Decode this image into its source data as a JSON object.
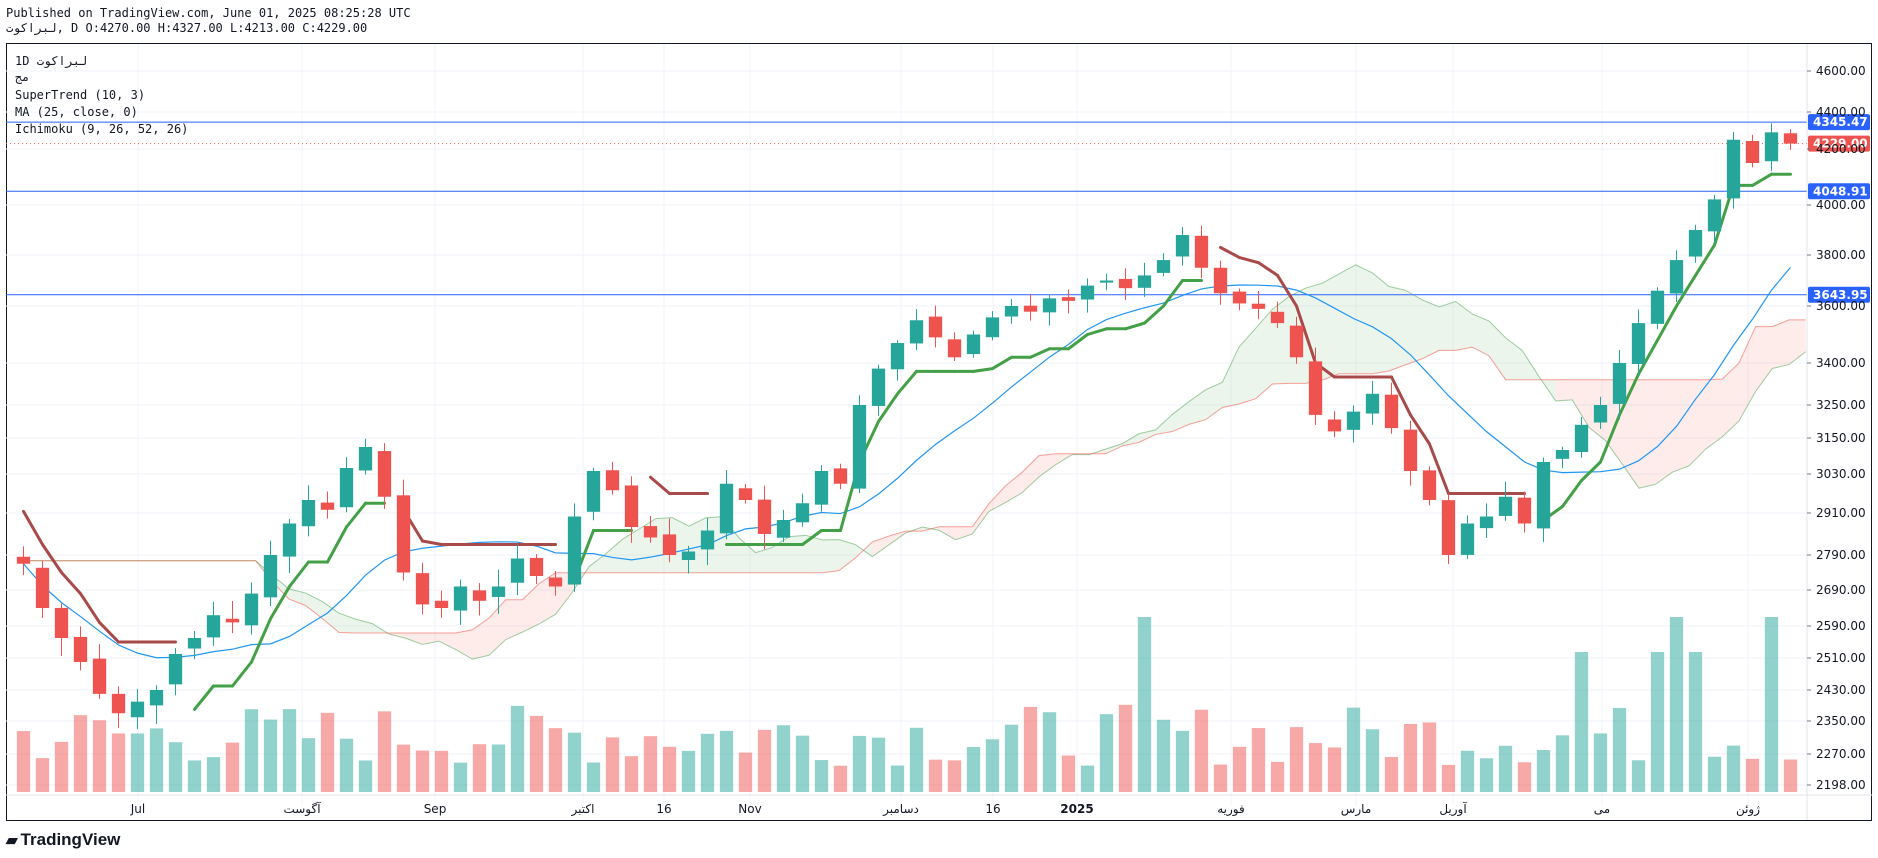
{
  "header": {
    "published": "Published on TradingView.com, June 01, 2025 08:25:28 UTC",
    "symbol": "لبراكوت, D",
    "ohlc": "O:4270.00 H:4327.00 L:4213.00 C:4229.00"
  },
  "legend": {
    "symbol_interval": "1D لبراكوت",
    "exchange": "مج",
    "indicators": [
      "SuperTrend (10, 3)",
      "MA (25, close, 0)",
      "Ichimoku (9, 26, 52, 26)"
    ]
  },
  "brand": {
    "text": "TradingView"
  },
  "colors": {
    "up": "#26a69a",
    "down": "#ef5350",
    "hline": "#2962ff",
    "ma": "#2196f3",
    "st_up": "#43a047",
    "st_down": "#a84a4a"
  },
  "chart_data": {
    "type": "line",
    "title": "",
    "y_axis": {
      "ticks": [
        4600,
        4400,
        4200,
        4000,
        3800,
        3600,
        3400,
        3250,
        3150,
        3030,
        2910,
        2790,
        2690,
        2590,
        2510,
        2430,
        2350,
        2270,
        2198
      ],
      "tick_labels": [
        "4600.00",
        "4400.00",
        "4200.00",
        "4000.00",
        "3800.00",
        "3600.00",
        "3400.00",
        "3250.00",
        "3150.00",
        "3030.00",
        "2910.00",
        "2790.00",
        "2690.00",
        "2590.00",
        "2510.00",
        "2430.00",
        "2350.00",
        "2270.00",
        "2198.00"
      ]
    },
    "x_axis": {
      "labels": [
        "Jul",
        "آگوست",
        "Sep",
        "اکتبر",
        "16",
        "Nov",
        "دسامبر",
        "16",
        "2025",
        "فوریه",
        "مارس",
        "آوریل",
        "می",
        "ژوئن"
      ],
      "bold": [
        false,
        false,
        false,
        false,
        false,
        false,
        false,
        false,
        true,
        false,
        false,
        false,
        false,
        false
      ]
    },
    "price_levels": [
      {
        "value": 4345.47,
        "label": "4345.47",
        "kind": "resistance"
      },
      {
        "value": 4048.91,
        "label": "4048.91",
        "kind": "support"
      },
      {
        "value": 3643.95,
        "label": "3643.95",
        "kind": "support"
      }
    ],
    "last_price": {
      "value": 4229.0,
      "label": "4229.00"
    },
    "close_series_approx": [
      2765,
      2640,
      2560,
      2500,
      2420,
      2370,
      2400,
      2430,
      2520,
      2560,
      2620,
      2600,
      2680,
      2790,
      2880,
      2950,
      2920,
      3050,
      3120,
      2960,
      2740,
      2650,
      2640,
      2700,
      2660,
      2700,
      2780,
      2730,
      2700,
      2900,
      3040,
      2980,
      2870,
      2840,
      2790,
      2800,
      2860,
      3000,
      2950,
      2850,
      2890,
      2940,
      3040,
      3000,
      3250,
      3380,
      3470,
      3550,
      3490,
      3420,
      3500,
      3560,
      3600,
      3580,
      3630,
      3620,
      3680,
      3700,
      3670,
      3720,
      3780,
      3880,
      3750,
      3650,
      3610,
      3590,
      3540,
      3420,
      3220,
      3170,
      3230,
      3290,
      3180,
      3040,
      2950,
      2790,
      2880,
      2900,
      2960,
      2880,
      3070,
      3110,
      3190,
      3250,
      3400,
      3540,
      3660,
      3780,
      3900,
      4020,
      4250,
      4150,
      4290,
      4229
    ]
  }
}
